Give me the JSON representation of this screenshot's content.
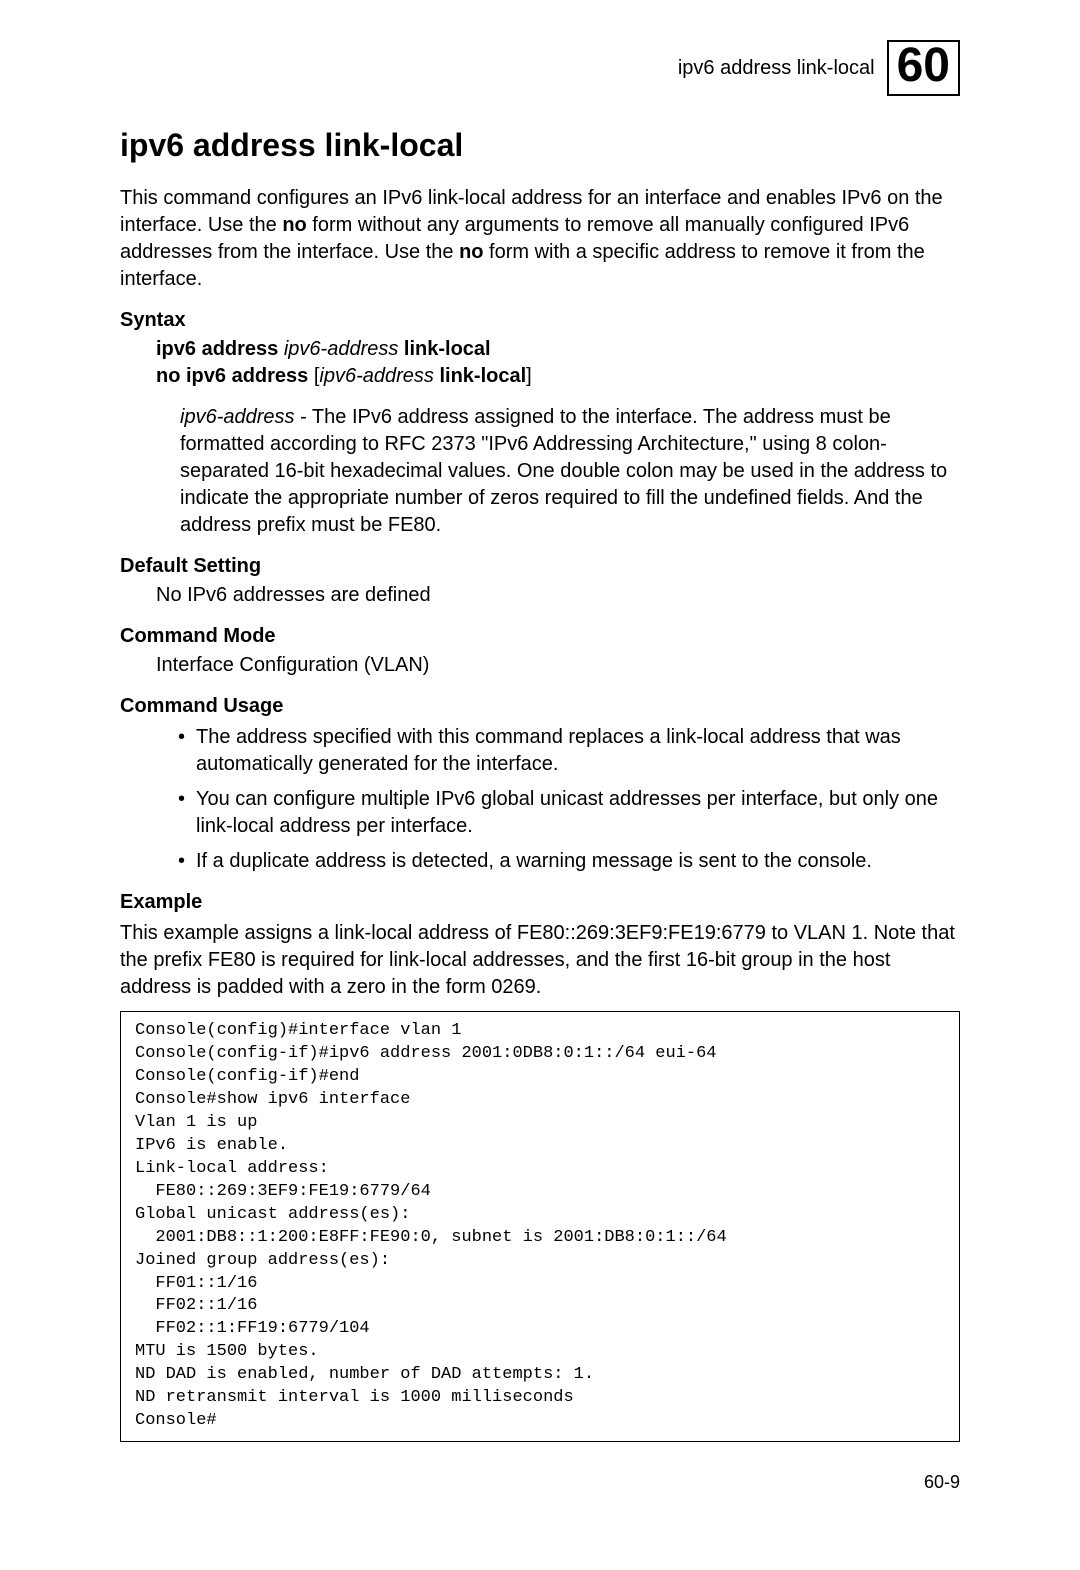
{
  "header": {
    "label": "ipv6 address link-local",
    "chapter_number": "60"
  },
  "title": "ipv6 address link-local",
  "intro": {
    "part1": "This command configures an IPv6 link-local address for an interface and enables IPv6 on the interface. Use the ",
    "no1": "no",
    "part2": " form without any arguments to remove all manually configured IPv6 addresses from the interface. Use the ",
    "no2": "no",
    "part3": " form with a specific address to remove it from the interface."
  },
  "syntax": {
    "label": "Syntax",
    "line1": {
      "a": "ipv6 address ",
      "b": "ipv6-address",
      "c": " link-local"
    },
    "line2": {
      "a": "no ipv6 address ",
      "b": "[",
      "c": "ipv6-address",
      "d": " link-local",
      "e": "]"
    },
    "param": {
      "name": "ipv6-address",
      "desc": " - The IPv6 address assigned to the interface. The address must be formatted according to RFC 2373 \"IPv6 Addressing Architecture,\" using 8 colon-separated 16-bit hexadecimal values. One double colon may be used in the address to indicate the appropriate number of zeros required to fill the undefined fields. And the address prefix must be FE80."
    }
  },
  "default_setting": {
    "label": "Default Setting",
    "text": "No IPv6 addresses are defined"
  },
  "command_mode": {
    "label": "Command Mode",
    "text": "Interface Configuration (VLAN)"
  },
  "command_usage": {
    "label": "Command Usage",
    "items": [
      "The address specified with this command replaces a link-local address that was automatically generated for the interface.",
      "You can configure multiple IPv6 global unicast addresses per interface, but only one link-local address per interface.",
      "If a duplicate address is detected, a warning message is sent to the console."
    ]
  },
  "example": {
    "label": "Example",
    "intro": "This example assigns a link-local address of FE80::269:3EF9:FE19:6779 to VLAN 1. Note that the prefix FE80 is required for link-local addresses, and the first 16-bit group in the host address is padded with a zero in the form 0269.",
    "code": "Console(config)#interface vlan 1\nConsole(config-if)#ipv6 address 2001:0DB8:0:1::/64 eui-64\nConsole(config-if)#end\nConsole#show ipv6 interface\nVlan 1 is up\nIPv6 is enable.\nLink-local address:\n  FE80::269:3EF9:FE19:6779/64\nGlobal unicast address(es):\n  2001:DB8::1:200:E8FF:FE90:0, subnet is 2001:DB8:0:1::/64\nJoined group address(es):\n  FF01::1/16\n  FF02::1/16\n  FF02::1:FF19:6779/104\nMTU is 1500 bytes.\nND DAD is enabled, number of DAD attempts: 1.\nND retransmit interval is 1000 milliseconds\nConsole#"
  },
  "footer": {
    "page": "60-9"
  }
}
